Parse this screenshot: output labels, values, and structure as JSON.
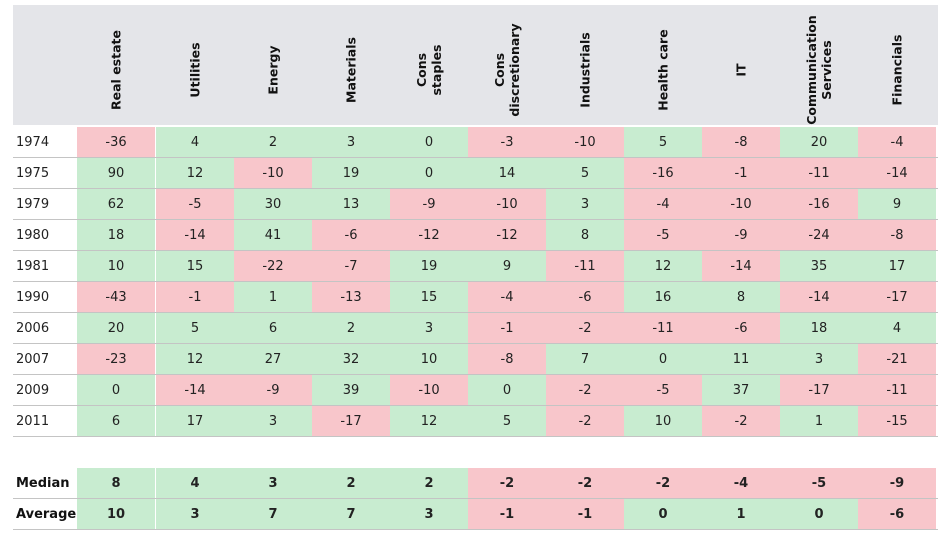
{
  "chart_data": {
    "type": "table",
    "columns": [
      "Real estate",
      "Utilities",
      "Energy",
      "Materials",
      "Cons\nstaples",
      "Cons\ndiscretionary",
      "Industrials",
      "Health care",
      "IT",
      "Communication\nServices",
      "Financials"
    ],
    "rows": [
      {
        "label": "1974",
        "values": [
          "-36",
          "4",
          "2",
          "3",
          "0",
          "-3",
          "-10",
          "5",
          "-8",
          "20",
          "-4"
        ]
      },
      {
        "label": "1975",
        "values": [
          "90",
          "12",
          "-10",
          "19",
          "0",
          "14",
          "5",
          "-16",
          "-1",
          "-11",
          "-14"
        ]
      },
      {
        "label": "1979",
        "values": [
          "62",
          "-5",
          "30",
          "13",
          "-9",
          "-10",
          "3",
          "-4",
          "-10",
          "-16",
          "9"
        ]
      },
      {
        "label": "1980",
        "values": [
          "18",
          "-14",
          "41",
          "-6",
          "-12",
          "-12",
          "8",
          "-5",
          "-9",
          "-24",
          "-8"
        ]
      },
      {
        "label": "1981",
        "values": [
          "10",
          "15",
          "-22",
          "-7",
          "19",
          "9",
          "-11",
          "12",
          "-14",
          "35",
          "17"
        ]
      },
      {
        "label": "1990",
        "values": [
          "-43",
          "-1",
          "1",
          "-13",
          "15",
          "-4",
          "-6",
          "16",
          "8",
          "-14",
          "-17"
        ]
      },
      {
        "label": "2006",
        "values": [
          "20",
          "5",
          "6",
          "2",
          "3",
          "-1",
          "-2",
          "-11",
          "-6",
          "18",
          "4"
        ]
      },
      {
        "label": "2007",
        "values": [
          "-23",
          "12",
          "27",
          "32",
          "10",
          "-8",
          "7",
          "0",
          "11",
          "3",
          "-21"
        ]
      },
      {
        "label": "2009",
        "values": [
          "0",
          "-14",
          "-9",
          "39",
          "-10",
          "0",
          "-2",
          "-5",
          "37",
          "-17",
          "-11"
        ]
      },
      {
        "label": "2011",
        "values": [
          "6",
          "17",
          "3",
          "-17",
          "12",
          "5",
          "-2",
          "10",
          "-2",
          "1",
          "-15"
        ]
      }
    ],
    "summary": [
      {
        "label": "Median",
        "values": [
          "8",
          "4",
          "3",
          "2",
          "2",
          "-2",
          "-2",
          "-2",
          "-4",
          "-5",
          "-9"
        ]
      },
      {
        "label": "Average",
        "values": [
          "10",
          "3",
          "7",
          "7",
          "3",
          "-1",
          "-1",
          "0",
          "1",
          "0",
          "-6"
        ]
      }
    ],
    "colors": {
      "positive": "#c8ecd0",
      "negative": "#f8c6cb",
      "header": "#e4e5e9"
    }
  }
}
